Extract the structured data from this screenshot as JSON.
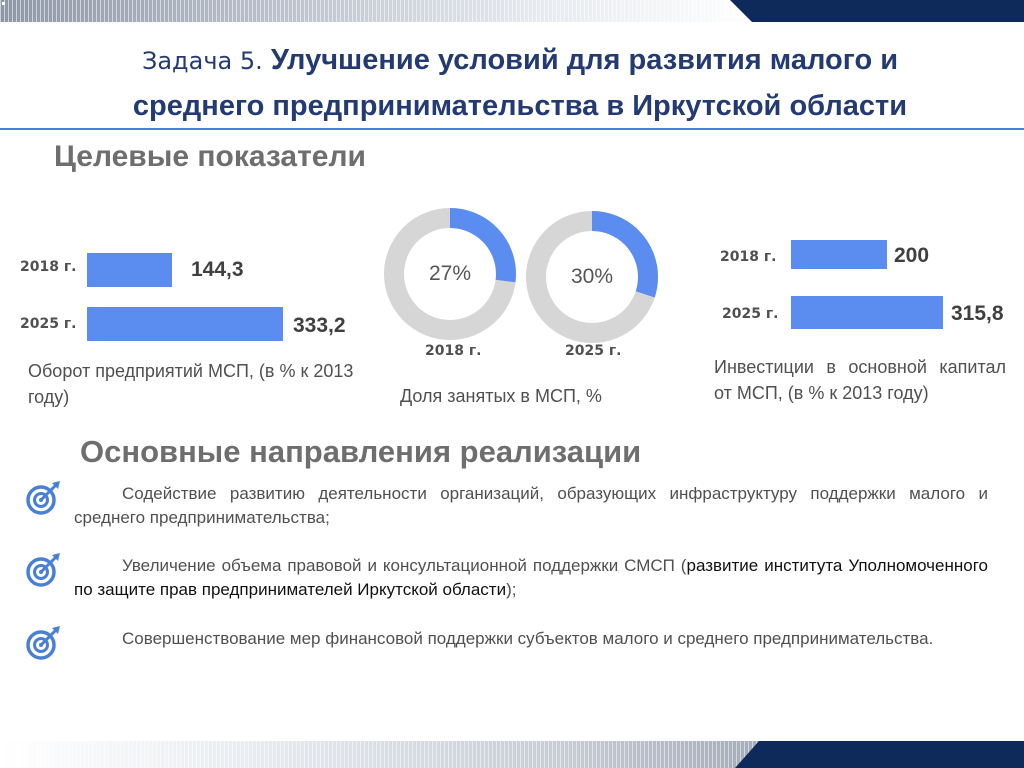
{
  "title": {
    "prefix": "Задача 5.",
    "line1": "Улучшение условий для развития малого и",
    "line2": "среднего предпринимательства в Иркутской области"
  },
  "targets": {
    "heading": "Целевые показатели",
    "turnover": {
      "items": [
        {
          "year": "2018 г.",
          "value": "144,3",
          "num": 144.3
        },
        {
          "year": "2025 г.",
          "value": "333,2",
          "num": 333.2
        }
      ],
      "caption": "Оборот предприятий МСП, (в % к 2013 году)"
    },
    "employment": {
      "items": [
        {
          "year": "2018 г.",
          "percent_label": "27%",
          "fraction": 0.27
        },
        {
          "year": "2025 г.",
          "percent_label": "30%",
          "fraction": 0.3
        }
      ],
      "caption": "Доля занятых в МСП, %"
    },
    "investment": {
      "items": [
        {
          "year": "2018 г.",
          "value": "200",
          "num": 200
        },
        {
          "year": "2025 г.",
          "value": "315,8",
          "num": 315.8
        }
      ],
      "caption": "Инвестиции в основной капитал от МСП, (в % к 2013 году)"
    }
  },
  "directions": {
    "heading": "Основные направления реализации",
    "items": [
      {
        "text": "Содействие развитию деятельности организаций, образующих инфраструктуру поддержки малого и среднего предпринимательства;"
      },
      {
        "text": "Увеличение объема правовой и консультационной поддержки СМСП (",
        "highlight": "развитие института Уполномоченного по защите прав предпринимателей Иркутской области",
        "tail": ");"
      },
      {
        "text": "Совершенствование мер финансовой поддержки субъектов малого и среднего предпринимательства."
      }
    ]
  },
  "colors": {
    "accent_blue": "#5b8cf0",
    "title_navy": "#243a73",
    "donut_gray": "#d6d6d6",
    "strip_navy": "#0d2a5b"
  },
  "icons": {
    "direction_bullet": "target-arrow-icon"
  }
}
